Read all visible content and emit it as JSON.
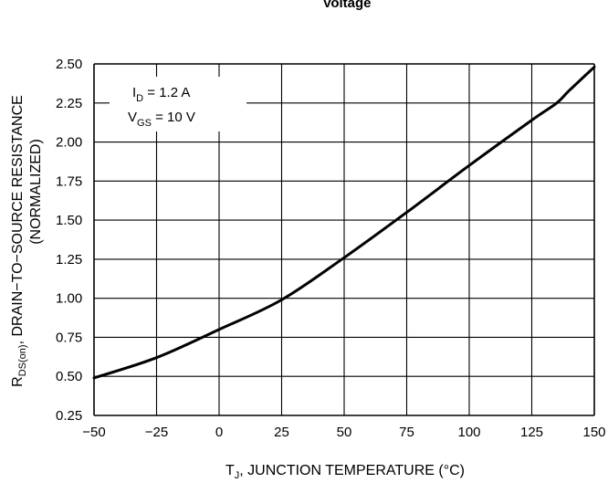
{
  "chart_data": {
    "type": "line",
    "title": "Voltage",
    "xlabel": {
      "main": "T",
      "sub": "J",
      "rest": ", JUNCTION TEMPERATURE (°C)"
    },
    "ylabel": {
      "line1_main": "R",
      "line1_sub": "DS(on)",
      "line1_rest": ", DRAIN−TO−SOURCE RESISTANCE",
      "line2": "(NORMALIZED)"
    },
    "xlim": [
      -50,
      150
    ],
    "ylim": [
      0.25,
      2.5
    ],
    "x_ticks": [
      "−50",
      "−25",
      "0",
      "25",
      "50",
      "75",
      "100",
      "125",
      "150"
    ],
    "y_ticks": [
      "0.25",
      "0.50",
      "0.75",
      "1.00",
      "1.25",
      "1.50",
      "1.75",
      "2.00",
      "2.25",
      "2.50"
    ],
    "grid": true,
    "annotations": {
      "id": {
        "main": "I",
        "sub": "D",
        "rest": " = 1.2 A"
      },
      "vgs": {
        "main": "V",
        "sub": "GS",
        "rest": " = 10 V"
      }
    },
    "series": [
      {
        "x": [
          -50,
          -25,
          0,
          25,
          50,
          75,
          100,
          125,
          135,
          140,
          150
        ],
        "y": [
          0.49,
          0.62,
          0.8,
          0.99,
          1.26,
          1.55,
          1.85,
          2.14,
          2.25,
          2.33,
          2.48
        ]
      }
    ],
    "colors": {
      "line": "#000000",
      "grid": "#000000",
      "background": "#ffffff"
    }
  }
}
